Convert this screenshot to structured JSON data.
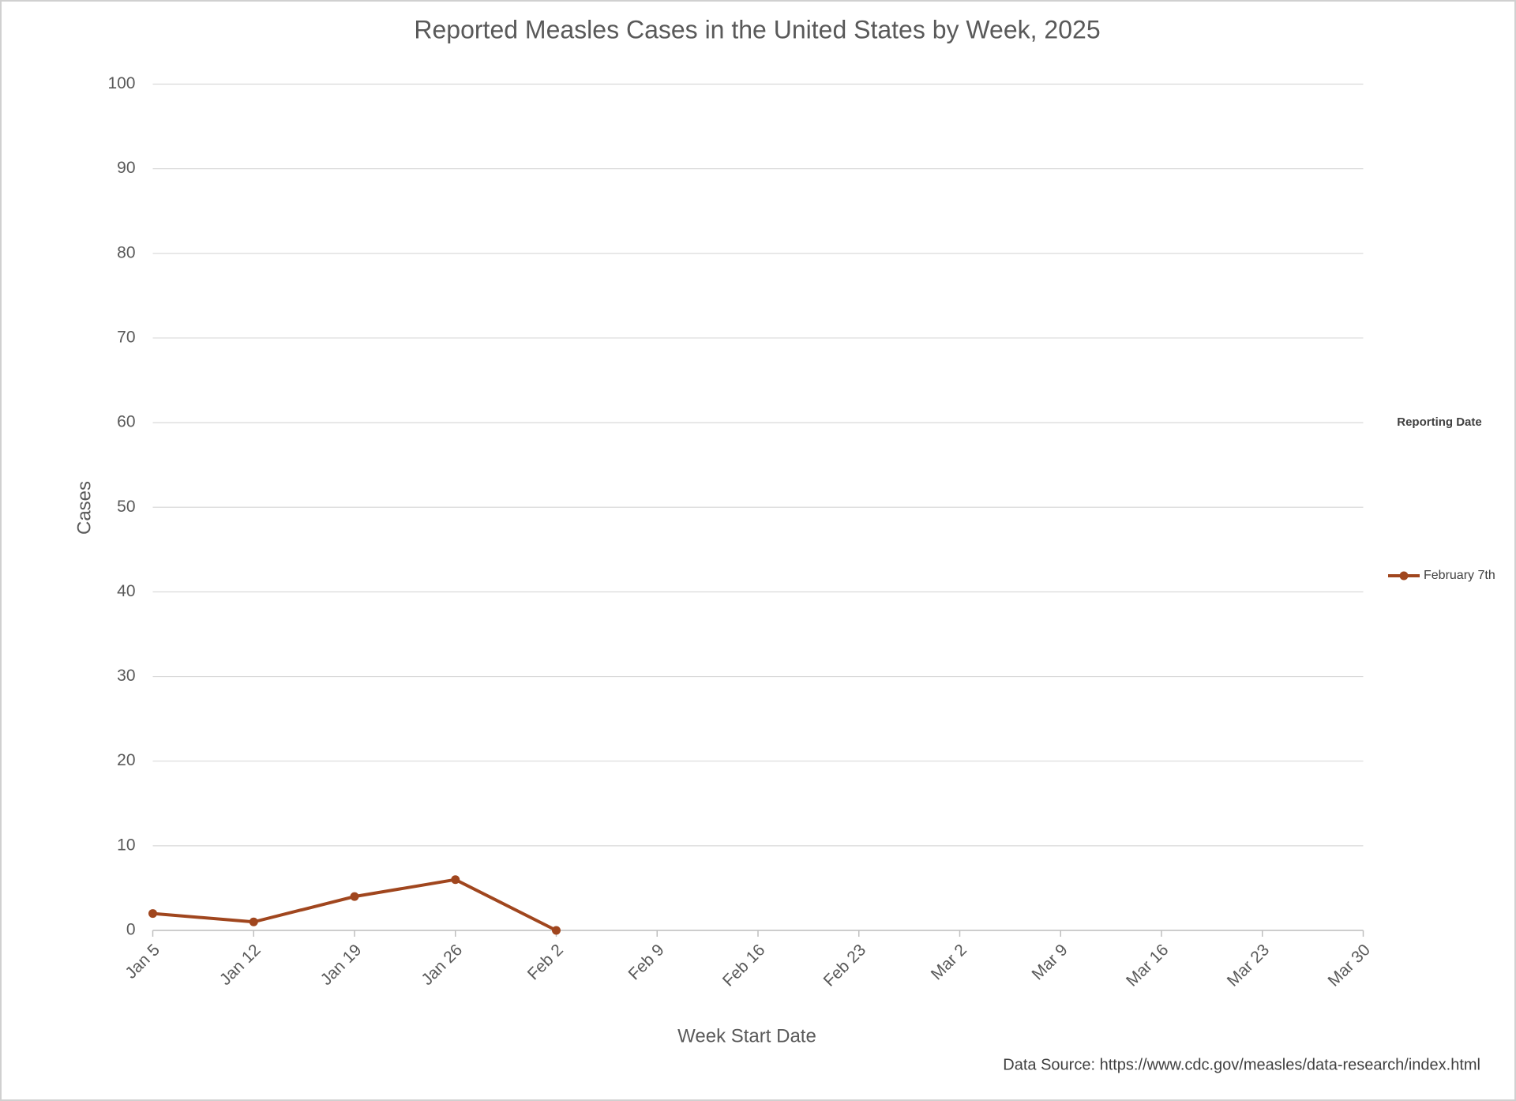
{
  "chart_data": {
    "type": "line",
    "title": "Reported Measles Cases in the United States by Week, 2025",
    "x_label": "Week Start Date",
    "y_label": "Cases",
    "source": "Data Source: https://www.cdc.gov/measles/data-research/index.html",
    "legend_title": "Reporting Date",
    "legend_position": "right",
    "categories": [
      "Jan 5",
      "Jan 12",
      "Jan 19",
      "Jan 26",
      "Feb 2",
      "Feb 9",
      "Feb 16",
      "Feb 23",
      "Mar 2",
      "Mar 9",
      "Mar 16",
      "Mar 23",
      "Mar 30"
    ],
    "series": [
      {
        "name": "February 7th",
        "color": "#a0461e",
        "values": [
          2,
          1,
          4,
          6,
          0,
          null,
          null,
          null,
          null,
          null,
          null,
          null,
          null
        ]
      }
    ],
    "ylim": [
      0,
      100
    ],
    "yticks": [
      0,
      10,
      20,
      30,
      40,
      50,
      60,
      70,
      80,
      90,
      100
    ],
    "grid": true
  }
}
